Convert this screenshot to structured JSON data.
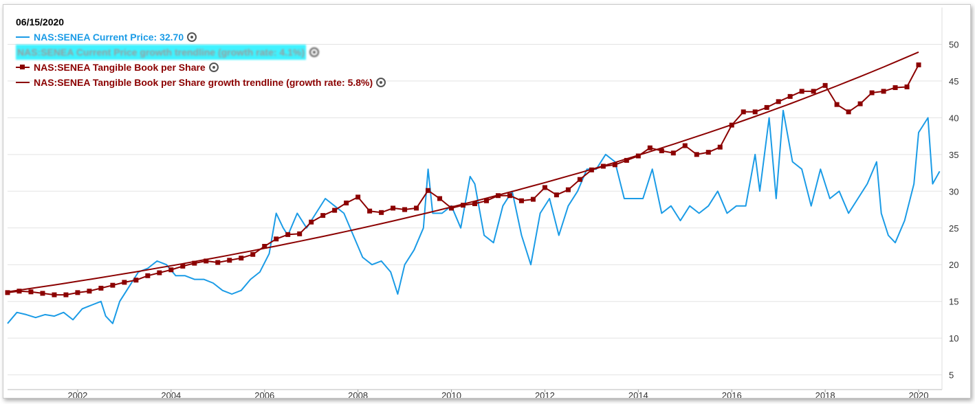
{
  "legend": {
    "date": "06/15/2020",
    "items": [
      {
        "label": "NAS:SENEA Current Price: 32.70",
        "color": "#1a9be6",
        "marker": false,
        "gear": true,
        "blurred": false
      },
      {
        "label": "NAS:SENEA Current Price growth trendline (growth rate: 4.1%)",
        "color": "#1a9be6",
        "marker": false,
        "gear": true,
        "blurred": true
      },
      {
        "label": "NAS:SENEA Tangible Book per Share",
        "color": "#8b0000",
        "marker": true,
        "gear": true,
        "blurred": false
      },
      {
        "label": "NAS:SENEA Tangible Book per Share growth trendline (growth rate: 5.8%)",
        "color": "#8b0000",
        "marker": false,
        "gear": true,
        "blurred": false
      }
    ]
  },
  "chart_data": {
    "type": "line",
    "title": "",
    "xlabel": "",
    "ylabel": "",
    "xlim": [
      2000.5,
      2020.5
    ],
    "ylim": [
      3,
      55
    ],
    "y_ticks": [
      5,
      10,
      15,
      20,
      25,
      30,
      35,
      40,
      45,
      50
    ],
    "x_ticks": [
      2002,
      2004,
      2006,
      2008,
      2010,
      2012,
      2014,
      2016,
      2018,
      2020
    ],
    "grid": "horizontal",
    "y_axis_side": "right",
    "series": [
      {
        "name": "NAS:SENEA Current Price",
        "color": "#1a9be6",
        "x": [
          2000.5,
          2000.7,
          2000.9,
          2001.1,
          2001.3,
          2001.5,
          2001.7,
          2001.9,
          2002.1,
          2002.3,
          2002.5,
          2002.6,
          2002.75,
          2002.9,
          2003.1,
          2003.3,
          2003.5,
          2003.7,
          2003.9,
          2004.1,
          2004.3,
          2004.5,
          2004.7,
          2004.9,
          2005.1,
          2005.3,
          2005.5,
          2005.7,
          2005.9,
          2006.1,
          2006.25,
          2006.4,
          2006.5,
          2006.7,
          2006.9,
          2007.1,
          2007.3,
          2007.5,
          2007.7,
          2007.9,
          2008.1,
          2008.3,
          2008.5,
          2008.7,
          2008.85,
          2009.0,
          2009.2,
          2009.4,
          2009.5,
          2009.6,
          2009.8,
          2010.0,
          2010.2,
          2010.4,
          2010.5,
          2010.7,
          2010.9,
          2011.1,
          2011.3,
          2011.5,
          2011.7,
          2011.9,
          2012.1,
          2012.3,
          2012.5,
          2012.7,
          2012.9,
          2013.1,
          2013.3,
          2013.5,
          2013.7,
          2013.9,
          2014.1,
          2014.3,
          2014.5,
          2014.7,
          2014.9,
          2015.1,
          2015.3,
          2015.5,
          2015.7,
          2015.9,
          2016.1,
          2016.3,
          2016.5,
          2016.6,
          2016.8,
          2016.95,
          2017.1,
          2017.3,
          2017.5,
          2017.7,
          2017.9,
          2018.1,
          2018.3,
          2018.5,
          2018.7,
          2018.9,
          2019.1,
          2019.2,
          2019.35,
          2019.5,
          2019.7,
          2019.9,
          2020.0,
          2020.1,
          2020.2,
          2020.3,
          2020.45
        ],
        "y": [
          12,
          13.5,
          13.2,
          12.8,
          13.2,
          13,
          13.5,
          12.5,
          14,
          14.5,
          15,
          13,
          12,
          15,
          17,
          19,
          19.5,
          20.5,
          20,
          18.5,
          18.5,
          18,
          18,
          17.5,
          16.5,
          16,
          16.5,
          18,
          19,
          21.5,
          27,
          25,
          24,
          27,
          25,
          27,
          29,
          28,
          27,
          24,
          21,
          20,
          20.5,
          19,
          16,
          20,
          22,
          25,
          33,
          27,
          27,
          28,
          25,
          32,
          31,
          24,
          23,
          28,
          30,
          24,
          20,
          27,
          29,
          24,
          28,
          30,
          33,
          33,
          35,
          34,
          29,
          29,
          29,
          33,
          27,
          28,
          26,
          28,
          27,
          28,
          30,
          27,
          28,
          28,
          35,
          30,
          40,
          29,
          41,
          34,
          33,
          28,
          33,
          29,
          30,
          27,
          29,
          31,
          34,
          27,
          24,
          23,
          26,
          31,
          38,
          39,
          40,
          31,
          32.7
        ]
      },
      {
        "name": "NAS:SENEA Tangible Book per Share",
        "color": "#8b0000",
        "x": [
          2000.5,
          2000.75,
          2001.0,
          2001.25,
          2001.5,
          2001.75,
          2002.0,
          2002.25,
          2002.5,
          2002.75,
          2003.0,
          2003.25,
          2003.5,
          2003.75,
          2004.0,
          2004.25,
          2004.5,
          2004.75,
          2005.0,
          2005.25,
          2005.5,
          2005.75,
          2006.0,
          2006.25,
          2006.5,
          2006.75,
          2007.0,
          2007.25,
          2007.5,
          2007.75,
          2008.0,
          2008.25,
          2008.5,
          2008.75,
          2009.0,
          2009.25,
          2009.5,
          2009.75,
          2010.0,
          2010.25,
          2010.5,
          2010.75,
          2011.0,
          2011.25,
          2011.5,
          2011.75,
          2012.0,
          2012.25,
          2012.5,
          2012.75,
          2013.0,
          2013.25,
          2013.5,
          2013.75,
          2014.0,
          2014.25,
          2014.5,
          2014.75,
          2015.0,
          2015.25,
          2015.5,
          2015.75,
          2016.0,
          2016.25,
          2016.5,
          2016.75,
          2017.0,
          2017.25,
          2017.5,
          2017.75,
          2018.0,
          2018.25,
          2018.5,
          2018.75,
          2019.0,
          2019.25,
          2019.5,
          2019.75,
          2020.0
        ],
        "y": [
          16.2,
          16.4,
          16.3,
          16.1,
          15.9,
          15.9,
          16.2,
          16.4,
          16.8,
          17.2,
          17.6,
          17.9,
          18.5,
          18.9,
          19.3,
          19.8,
          20.2,
          20.5,
          20.3,
          20.6,
          20.9,
          21.4,
          22.5,
          23.5,
          24.1,
          24.2,
          25.8,
          26.7,
          27.4,
          28.4,
          29.2,
          27.3,
          27.1,
          27.7,
          27.5,
          27.7,
          30.1,
          29,
          27.7,
          28.1,
          28.3,
          28.7,
          29.4,
          29.4,
          28.7,
          28.9,
          30.5,
          29.5,
          30.2,
          31.6,
          32.9,
          33.4,
          33.6,
          34.2,
          34.8,
          35.9,
          35.5,
          35.2,
          36.2,
          35,
          35.3,
          36,
          39,
          40.8,
          40.8,
          41.4,
          42.2,
          42.9,
          43.6,
          43.6,
          44.4,
          41.8,
          40.8,
          41.9,
          43.4,
          43.6,
          44.1,
          44.2,
          47.2
        ]
      },
      {
        "name": "NAS:SENEA Tangible Book per Share growth trendline (growth rate: 5.8%)",
        "color": "#8b0000",
        "trend": {
          "start_x": 2000.5,
          "start_y": 16.3,
          "rate": 0.058,
          "end_x": 2020.0
        }
      }
    ]
  }
}
